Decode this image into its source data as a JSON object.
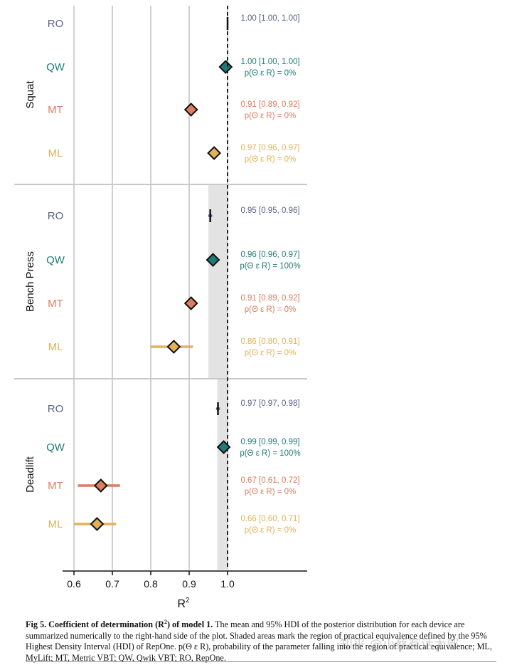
{
  "chart_data": {
    "type": "forest",
    "xlabel": "R",
    "xlabel_sup": "2",
    "xlim": [
      0.57,
      1.2
    ],
    "xticks": [
      0.6,
      0.7,
      0.8,
      0.9,
      1.0
    ],
    "xtick_labels": [
      "0.6",
      "0.7",
      "0.8",
      "0.9",
      "1.0"
    ],
    "reference_line": 1.0,
    "grid": true,
    "device_colors": {
      "RO": "#5b6487",
      "QW": "#1f7a78",
      "MT": "#d97e5f",
      "ML": "#e0b25a"
    },
    "panels": [
      {
        "name": "Squat",
        "rope": null,
        "rows": [
          {
            "device": "RO",
            "mean": 1.0,
            "lo": 1.0,
            "hi": 1.0,
            "marker": "bar",
            "ann1": "1.00 [1.00, 1.00]",
            "ann2": ""
          },
          {
            "device": "QW",
            "mean": 0.995,
            "lo": 0.995,
            "hi": 0.995,
            "marker": "diamond",
            "ann1": "1.00 [1.00, 1.00]",
            "ann2": "p(Θ ε R) = 0%"
          },
          {
            "device": "MT",
            "mean": 0.905,
            "lo": 0.89,
            "hi": 0.92,
            "marker": "diamond",
            "ann1": "0.91 [0.89, 0.92]",
            "ann2": "p(Θ ε R) = 0%"
          },
          {
            "device": "ML",
            "mean": 0.965,
            "lo": 0.96,
            "hi": 0.97,
            "marker": "diamond",
            "ann1": "0.97 [0.96, 0.97]",
            "ann2": "p(Θ ε R) = 0%"
          }
        ]
      },
      {
        "name": "Bench Press",
        "rope": [
          0.95,
          1.0
        ],
        "rows": [
          {
            "device": "RO",
            "mean": 0.955,
            "lo": 0.95,
            "hi": 0.96,
            "marker": "bar",
            "ann1": "0.95 [0.95, 0.96]",
            "ann2": ""
          },
          {
            "device": "QW",
            "mean": 0.962,
            "lo": 0.96,
            "hi": 0.97,
            "marker": "diamond",
            "ann1": "0.96 [0.96, 0.97]",
            "ann2": "p(Θ ε R) = 100%"
          },
          {
            "device": "MT",
            "mean": 0.905,
            "lo": 0.89,
            "hi": 0.92,
            "marker": "diamond",
            "ann1": "0.91 [0.89, 0.92]",
            "ann2": "p(Θ ε R) = 0%"
          },
          {
            "device": "ML",
            "mean": 0.86,
            "lo": 0.8,
            "hi": 0.91,
            "marker": "diamond",
            "ann1": "0.86 [0.80, 0.91]",
            "ann2": "p(Θ ε R) = 0%"
          }
        ]
      },
      {
        "name": "Deadlift",
        "rope": [
          0.973,
          1.0
        ],
        "rows": [
          {
            "device": "RO",
            "mean": 0.975,
            "lo": 0.97,
            "hi": 0.98,
            "marker": "bar",
            "ann1": "0.97 [0.97, 0.98]",
            "ann2": ""
          },
          {
            "device": "QW",
            "mean": 0.99,
            "lo": 0.99,
            "hi": 0.99,
            "marker": "diamond",
            "ann1": "0.99 [0.99, 0.99]",
            "ann2": "p(Θ ε R) = 100%"
          },
          {
            "device": "MT",
            "mean": 0.67,
            "lo": 0.61,
            "hi": 0.72,
            "marker": "diamond",
            "ann1": "0.67 [0.61, 0.72]",
            "ann2": "p(Θ ε R) = 0%"
          },
          {
            "device": "ML",
            "mean": 0.66,
            "lo": 0.6,
            "hi": 0.71,
            "marker": "diamond",
            "ann1": "0.66 [0.60, 0.71]",
            "ann2": "p(Θ ε R) = 0%"
          }
        ]
      }
    ]
  },
  "caption": {
    "label": "Fig 5. Coefficient of determination (R",
    "label_sup": "2",
    "label_end": ") of model 1.",
    "text": " The mean and 95% HDI of the posterior distribution for each device are summarized numerically to the right-hand side of the plot. Shaded areas mark the region of practical equivalence defined by the 95% Highest Density Interval (HDI) of RepOne. p(Θ ε R), probability of the parameter falling into the region of practical equivalence; ML, MyLift; MT, Metric VBT; QW, Qwik VBT; RO, RepOne."
  },
  "watermark": "知乎 @小蔡有话大郭"
}
